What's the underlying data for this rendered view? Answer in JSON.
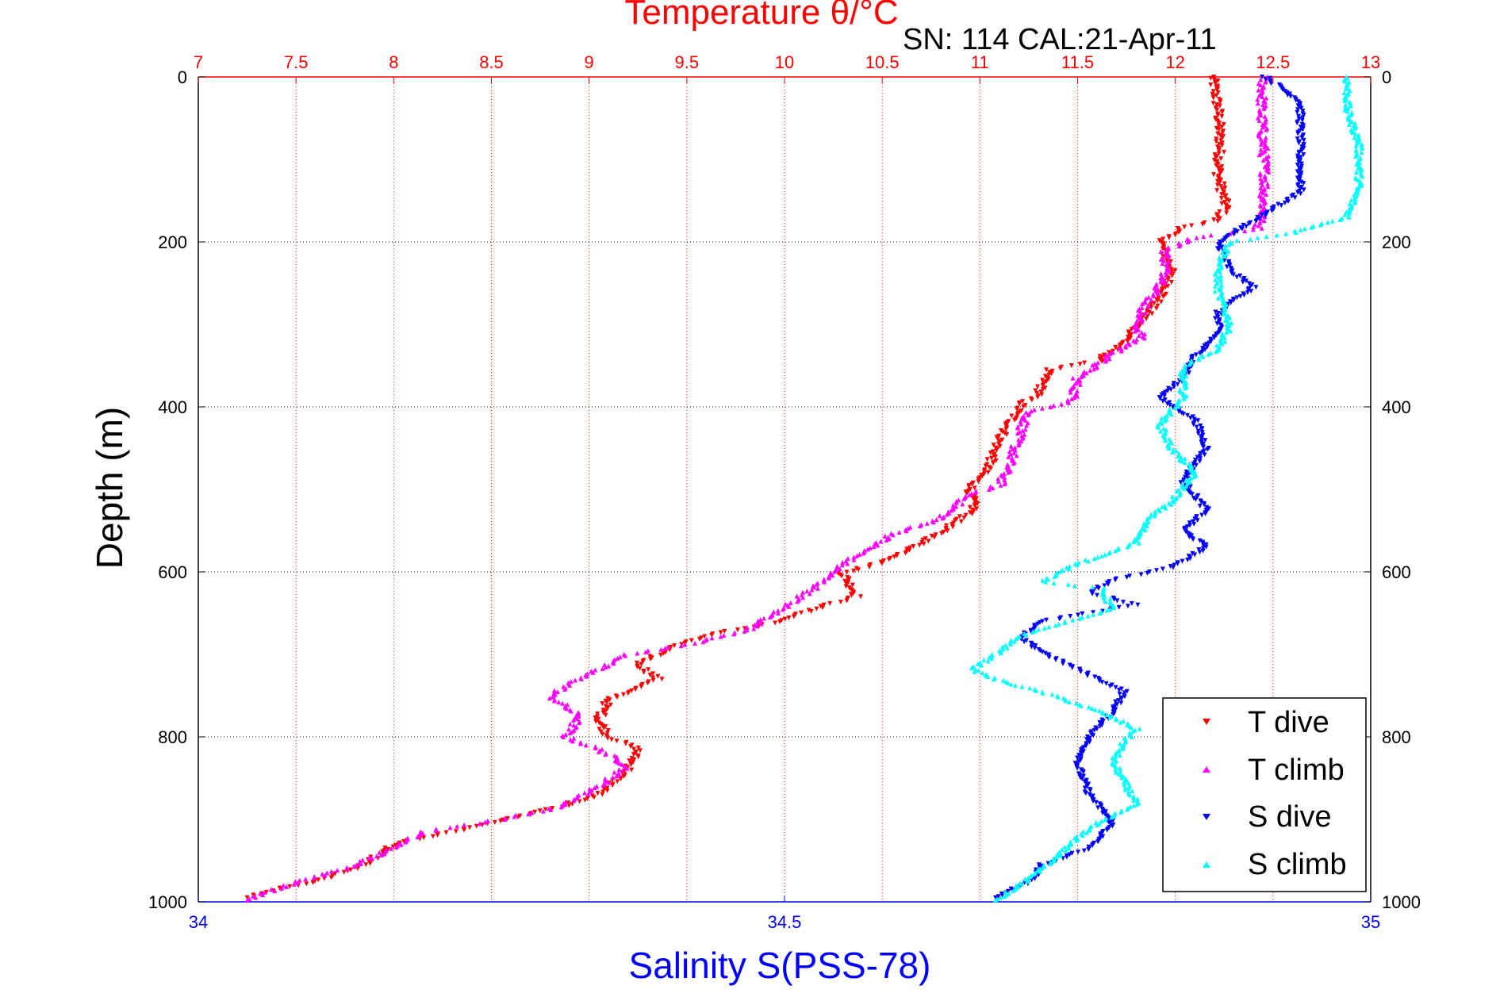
{
  "chart_data": {
    "type": "scatter",
    "title": "Temperature θ/°C",
    "subtitle": "SN: 114  CAL:21-Apr-11",
    "xlabel_top": "Temperature θ/°C",
    "xlabel_bottom": "Salinity S(PSS-78)",
    "ylabel": "Depth (m)",
    "temperature_axis": {
      "range": [
        7,
        13
      ],
      "ticks": [
        "7",
        "7.5",
        "8",
        "8.5",
        "9",
        "9.5",
        "10",
        "10.5",
        "11",
        "11.5",
        "12",
        "12.5",
        "13"
      ]
    },
    "salinity_axis": {
      "range": [
        34,
        35
      ],
      "ticks": [
        "34",
        "34.5",
        "35"
      ]
    },
    "depth_axis": {
      "range": [
        0,
        1000
      ],
      "reversed": true,
      "ticks": [
        "0",
        "200",
        "400",
        "600",
        "800",
        "1000"
      ]
    },
    "grid": true,
    "legend_position": "bottom-right",
    "series": [
      {
        "name": "T dive",
        "axis": "temperature",
        "color": "#ff0000",
        "marker": "triangle-down",
        "points": [
          [
            12.19,
            0
          ],
          [
            12.22,
            40
          ],
          [
            12.23,
            80
          ],
          [
            12.22,
            120
          ],
          [
            12.26,
            160
          ],
          [
            12.2,
            175
          ],
          [
            12.05,
            182
          ],
          [
            11.95,
            195
          ],
          [
            11.93,
            205
          ],
          [
            11.98,
            230
          ],
          [
            11.95,
            260
          ],
          [
            11.83,
            295
          ],
          [
            11.75,
            320
          ],
          [
            11.6,
            345
          ],
          [
            11.35,
            355
          ],
          [
            11.3,
            385
          ],
          [
            11.22,
            395
          ],
          [
            11.1,
            440
          ],
          [
            11.05,
            470
          ],
          [
            10.95,
            500
          ],
          [
            10.97,
            525
          ],
          [
            10.78,
            555
          ],
          [
            10.55,
            585
          ],
          [
            10.3,
            602
          ],
          [
            10.37,
            630
          ],
          [
            10.15,
            645
          ],
          [
            9.95,
            662
          ],
          [
            9.7,
            672
          ],
          [
            9.45,
            688
          ],
          [
            9.25,
            712
          ],
          [
            9.35,
            730
          ],
          [
            9.1,
            755
          ],
          [
            9.05,
            780
          ],
          [
            9.1,
            800
          ],
          [
            9.25,
            815
          ],
          [
            9.2,
            840
          ],
          [
            9.05,
            870
          ],
          [
            8.85,
            885
          ],
          [
            8.4,
            910
          ],
          [
            8.0,
            930
          ],
          [
            7.85,
            955
          ],
          [
            7.6,
            975
          ],
          [
            7.4,
            985
          ],
          [
            7.25,
            995
          ]
        ]
      },
      {
        "name": "T climb",
        "axis": "temperature",
        "color": "#ff00ff",
        "marker": "triangle-up",
        "points": [
          [
            12.45,
            0
          ],
          [
            12.44,
            40
          ],
          [
            12.45,
            80
          ],
          [
            12.46,
            120
          ],
          [
            12.45,
            160
          ],
          [
            12.42,
            185
          ],
          [
            12.1,
            195
          ],
          [
            11.95,
            210
          ],
          [
            11.95,
            245
          ],
          [
            11.85,
            275
          ],
          [
            11.8,
            300
          ],
          [
            11.83,
            315
          ],
          [
            11.65,
            340
          ],
          [
            11.5,
            365
          ],
          [
            11.47,
            395
          ],
          [
            11.25,
            405
          ],
          [
            11.2,
            435
          ],
          [
            11.15,
            470
          ],
          [
            11.1,
            495
          ],
          [
            10.95,
            505
          ],
          [
            10.8,
            535
          ],
          [
            10.55,
            555
          ],
          [
            10.3,
            590
          ],
          [
            10.15,
            620
          ],
          [
            9.95,
            650
          ],
          [
            9.8,
            672
          ],
          [
            9.5,
            688
          ],
          [
            9.2,
            700
          ],
          [
            8.98,
            725
          ],
          [
            8.8,
            750
          ],
          [
            8.95,
            775
          ],
          [
            8.88,
            800
          ],
          [
            9.05,
            815
          ],
          [
            9.2,
            835
          ],
          [
            9.05,
            860
          ],
          [
            8.85,
            885
          ],
          [
            8.55,
            900
          ],
          [
            8.15,
            915
          ],
          [
            7.95,
            940
          ],
          [
            7.75,
            960
          ],
          [
            7.45,
            980
          ],
          [
            7.25,
            998
          ]
        ]
      },
      {
        "name": "S dive",
        "axis": "salinity",
        "color": "#0000ff",
        "marker": "triangle-down",
        "points": [
          [
            34.91,
            0
          ],
          [
            34.94,
            30
          ],
          [
            34.94,
            80
          ],
          [
            34.94,
            140
          ],
          [
            34.9,
            175
          ],
          [
            34.87,
            200
          ],
          [
            34.88,
            235
          ],
          [
            34.9,
            255
          ],
          [
            34.87,
            285
          ],
          [
            34.87,
            310
          ],
          [
            34.85,
            340
          ],
          [
            34.84,
            365
          ],
          [
            34.82,
            390
          ],
          [
            34.85,
            415
          ],
          [
            34.86,
            450
          ],
          [
            34.84,
            490
          ],
          [
            34.86,
            525
          ],
          [
            34.84,
            550
          ],
          [
            34.86,
            570
          ],
          [
            34.83,
            595
          ],
          [
            34.78,
            610
          ],
          [
            34.76,
            625
          ],
          [
            34.8,
            640
          ],
          [
            34.72,
            660
          ],
          [
            34.7,
            680
          ],
          [
            34.73,
            705
          ],
          [
            34.79,
            745
          ],
          [
            34.78,
            770
          ],
          [
            34.76,
            800
          ],
          [
            34.75,
            835
          ],
          [
            34.76,
            870
          ],
          [
            34.78,
            905
          ],
          [
            34.76,
            935
          ],
          [
            34.72,
            955
          ],
          [
            34.71,
            975
          ],
          [
            34.68,
            995
          ]
        ]
      },
      {
        "name": "S climb",
        "axis": "salinity",
        "color": "#00ffff",
        "marker": "triangle-up",
        "points": [
          [
            34.98,
            0
          ],
          [
            34.98,
            40
          ],
          [
            34.99,
            80
          ],
          [
            34.99,
            130
          ],
          [
            34.98,
            170
          ],
          [
            34.93,
            190
          ],
          [
            34.88,
            200
          ],
          [
            34.87,
            230
          ],
          [
            34.87,
            260
          ],
          [
            34.88,
            300
          ],
          [
            34.87,
            330
          ],
          [
            34.84,
            350
          ],
          [
            34.84,
            390
          ],
          [
            34.82,
            420
          ],
          [
            34.83,
            450
          ],
          [
            34.85,
            480
          ],
          [
            34.83,
            515
          ],
          [
            34.81,
            535
          ],
          [
            34.8,
            565
          ],
          [
            34.75,
            590
          ],
          [
            34.72,
            612
          ],
          [
            34.77,
            620
          ],
          [
            34.78,
            645
          ],
          [
            34.74,
            660
          ],
          [
            34.7,
            678
          ],
          [
            34.68,
            700
          ],
          [
            34.66,
            718
          ],
          [
            34.68,
            730
          ],
          [
            34.73,
            750
          ],
          [
            34.77,
            770
          ],
          [
            34.8,
            790
          ],
          [
            34.79,
            805
          ],
          [
            34.78,
            830
          ],
          [
            34.8,
            880
          ],
          [
            34.76,
            910
          ],
          [
            34.74,
            935
          ],
          [
            34.72,
            960
          ],
          [
            34.7,
            980
          ],
          [
            34.68,
            998
          ]
        ]
      }
    ]
  },
  "legend": {
    "items": [
      {
        "label": "T dive",
        "color": "#ff0000",
        "marker": "triangle-down"
      },
      {
        "label": "T climb",
        "color": "#ff00ff",
        "marker": "triangle-up"
      },
      {
        "label": "S dive",
        "color": "#0000ff",
        "marker": "triangle-down"
      },
      {
        "label": "S climb",
        "color": "#00ffff",
        "marker": "triangle-up"
      }
    ]
  },
  "colors": {
    "temperature_axis": "#ff0000",
    "salinity_axis": "#0000ff",
    "grid_vertical": "#ff0000",
    "grid_horizontal": "#000000"
  }
}
